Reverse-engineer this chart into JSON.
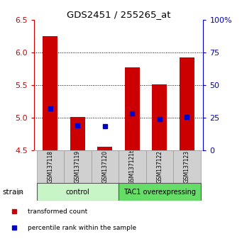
{
  "title": "GDS2451 / 255265_at",
  "samples": [
    "GSM137118",
    "GSM137119",
    "GSM137120",
    "GSM137121t",
    "GSM137122",
    "GSM137123"
  ],
  "red_values": [
    6.25,
    5.01,
    4.56,
    5.78,
    5.51,
    5.93
  ],
  "blue_values": [
    5.15,
    4.88,
    4.87,
    5.07,
    4.98,
    5.02
  ],
  "ylim_left": [
    4.5,
    6.5
  ],
  "ylim_right": [
    0,
    100
  ],
  "yticks_left": [
    4.5,
    5.0,
    5.5,
    6.0,
    6.5
  ],
  "yticks_right": [
    0,
    25,
    50,
    75,
    100
  ],
  "bar_bottom": 4.5,
  "groups": [
    {
      "label": "control",
      "samples_idx": [
        0,
        1,
        2
      ],
      "color": "#c8f5c8"
    },
    {
      "label": "TAC1 overexpressing",
      "samples_idx": [
        3,
        4,
        5
      ],
      "color": "#66dd66"
    }
  ],
  "red_color": "#cc0000",
  "blue_color": "#0000cc",
  "bar_width": 0.55,
  "bg_color": "#ffffff",
  "tick_color_left": "#cc0000",
  "tick_color_right": "#0000cc",
  "strain_label": "strain",
  "legend_red": "transformed count",
  "legend_blue": "percentile rank within the sample",
  "sample_box_color": "#d0d0d0",
  "sample_box_edge": "#999999"
}
